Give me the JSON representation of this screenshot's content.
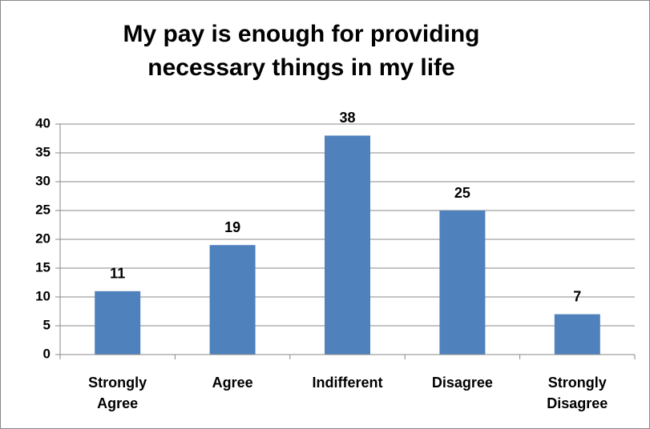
{
  "chart_data": {
    "type": "bar",
    "title": [
      "My pay is enough for providing",
      "necessary things in my life"
    ],
    "categories": [
      "Strongly Agree",
      "Agree",
      "Indifferent",
      "Disagree",
      "Strongly Disagree"
    ],
    "values": [
      11,
      19,
      38,
      25,
      7
    ],
    "color": "#4f81bd",
    "ylim": [
      0,
      40
    ],
    "yticks": [
      0,
      5,
      10,
      15,
      20,
      25,
      30,
      35,
      40
    ],
    "grid": true
  }
}
